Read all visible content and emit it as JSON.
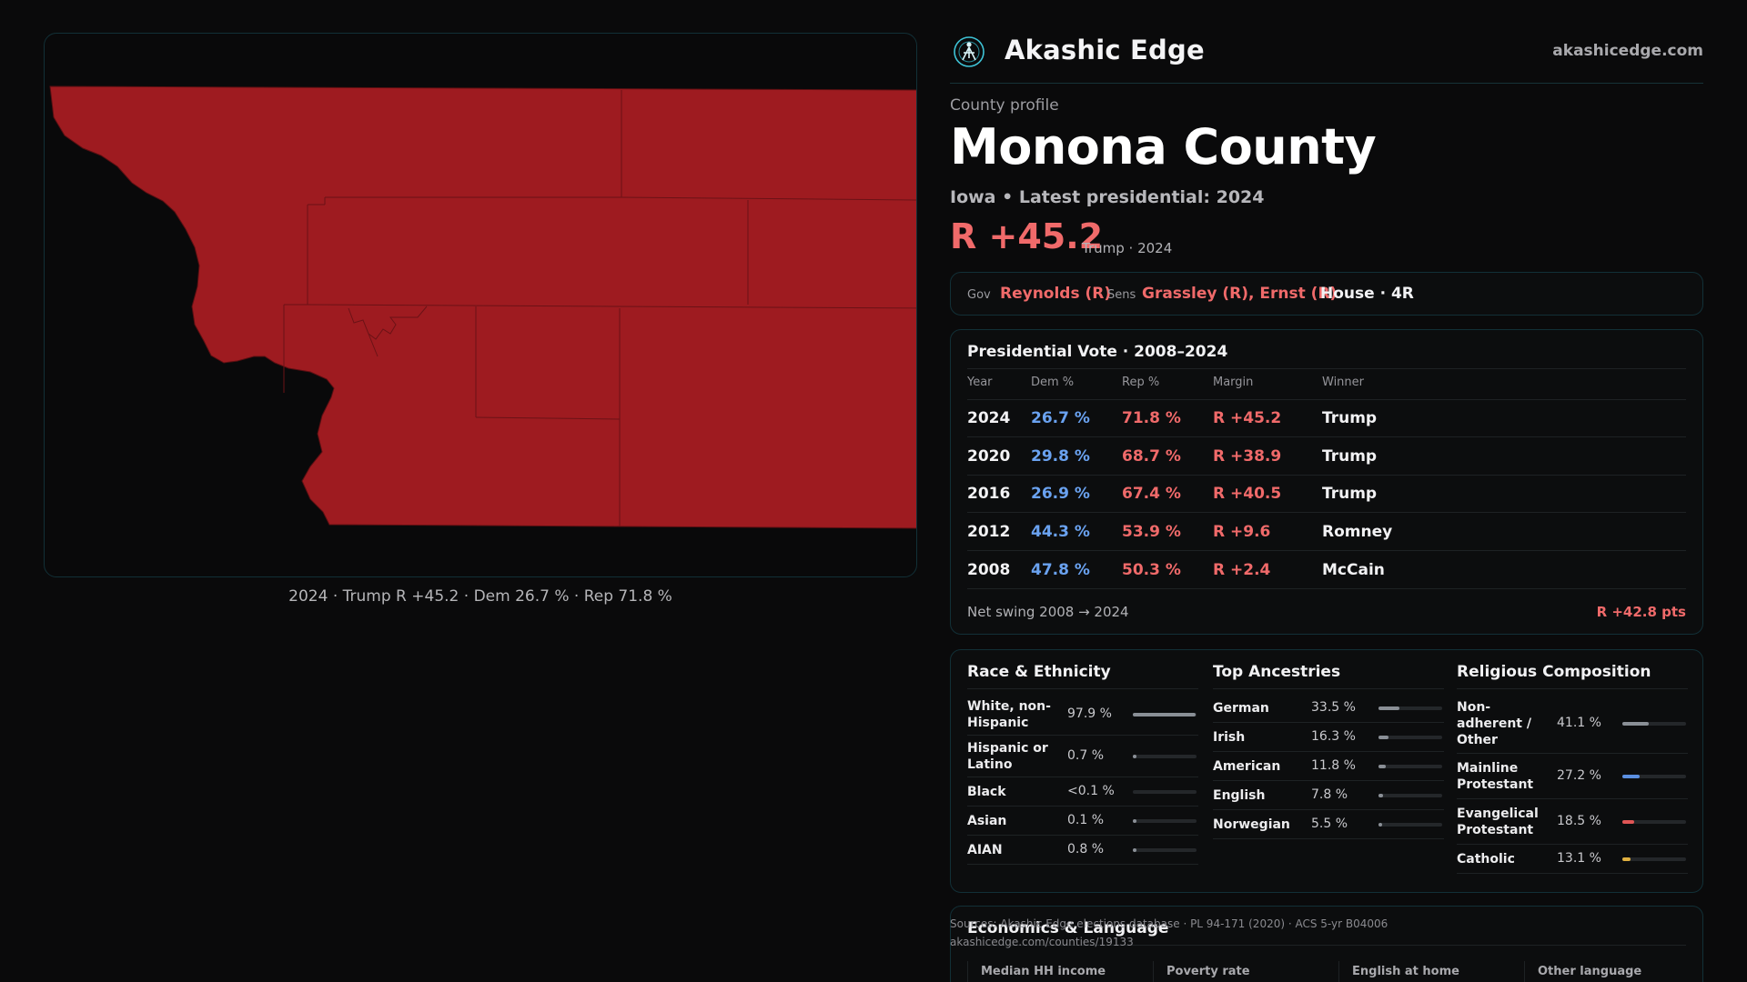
{
  "map_caption": "2024 · Trump R +45.2 · Dem 26.7 % · Rep 71.8 %",
  "map_color": "#9e1b20",
  "header": {
    "brand": "Akashic Edge",
    "url": "akashicedge.com",
    "logo_icon": "akashic-logo-icon",
    "accent": "#3ec3d6"
  },
  "eyebrow": "County profile",
  "county": "Monona County",
  "subtitle": "Iowa • Latest presidential: 2024",
  "margin": {
    "value": "R +45.2",
    "sub": "Trump · 2024"
  },
  "officials": {
    "gov_label": "Gov",
    "gov_value": "Reynolds (R)",
    "sens_label": "Sens",
    "sens_value": "Grassley (R), Ernst (R)",
    "house_value": "House · 4R"
  },
  "presidential": {
    "title": "Presidential Vote · 2008–2024",
    "headers": [
      "Year",
      "Dem %",
      "Rep %",
      "Margin",
      "Winner"
    ],
    "rows": [
      {
        "year": "2024",
        "dem": "26.7 %",
        "rep": "71.8 %",
        "margin": "R +45.2",
        "winner": "Trump"
      },
      {
        "year": "2020",
        "dem": "29.8 %",
        "rep": "68.7 %",
        "margin": "R +38.9",
        "winner": "Trump"
      },
      {
        "year": "2016",
        "dem": "26.9 %",
        "rep": "67.4 %",
        "margin": "R +40.5",
        "winner": "Trump"
      },
      {
        "year": "2012",
        "dem": "44.3 %",
        "rep": "53.9 %",
        "margin": "R +9.6",
        "winner": "Romney"
      },
      {
        "year": "2008",
        "dem": "47.8 %",
        "rep": "50.3 %",
        "margin": "R +2.4",
        "winner": "McCain"
      }
    ],
    "swing_label": "Net swing 2008 → 2024",
    "swing_value": "R +42.8 pts"
  },
  "race": {
    "title": "Race & Ethnicity",
    "items": [
      {
        "label": "White, non-Hispanic",
        "value": "97.9 %",
        "frac": 0.979,
        "color": "#8a8f96"
      },
      {
        "label": "Hispanic or Latino",
        "value": "0.7 %",
        "frac": 0.007,
        "color": "#8a8f96"
      },
      {
        "label": "Black",
        "value": "<0.1 %",
        "frac": 0.0,
        "color": "#8a8f96"
      },
      {
        "label": "Asian",
        "value": "0.1 %",
        "frac": 0.001,
        "color": "#8a8f96"
      },
      {
        "label": "AIAN",
        "value": "0.8 %",
        "frac": 0.008,
        "color": "#8a8f96"
      }
    ]
  },
  "ancestry": {
    "title": "Top Ancestries",
    "items": [
      {
        "label": "German",
        "value": "33.5 %",
        "frac": 0.335,
        "color": "#8a8f96"
      },
      {
        "label": "Irish",
        "value": "16.3 %",
        "frac": 0.163,
        "color": "#8a8f96"
      },
      {
        "label": "American",
        "value": "11.8 %",
        "frac": 0.118,
        "color": "#8a8f96"
      },
      {
        "label": "English",
        "value": "7.8 %",
        "frac": 0.078,
        "color": "#8a8f96"
      },
      {
        "label": "Norwegian",
        "value": "5.5 %",
        "frac": 0.055,
        "color": "#8a8f96"
      }
    ]
  },
  "religion": {
    "title": "Religious Composition",
    "items": [
      {
        "label": "Non-adherent / Other",
        "value": "41.1 %",
        "frac": 0.411,
        "color": "#8a8f96"
      },
      {
        "label": "Mainline Protestant",
        "value": "27.2 %",
        "frac": 0.272,
        "color": "#5b8fe0"
      },
      {
        "label": "Evangelical Protestant",
        "value": "18.5 %",
        "frac": 0.185,
        "color": "#e05555"
      },
      {
        "label": "Catholic",
        "value": "13.1 %",
        "frac": 0.131,
        "color": "#e0b040"
      }
    ]
  },
  "economics": {
    "title": "Economics & Language",
    "columns": [
      "Median HH income",
      "Poverty rate",
      "English at home",
      "Other language"
    ]
  },
  "sources": {
    "line1": "Sources: Akashic Edge elections database · PL 94-171 (2020) · ACS 5-yr B04006",
    "line2": "akashicedge.com/counties/19133"
  }
}
